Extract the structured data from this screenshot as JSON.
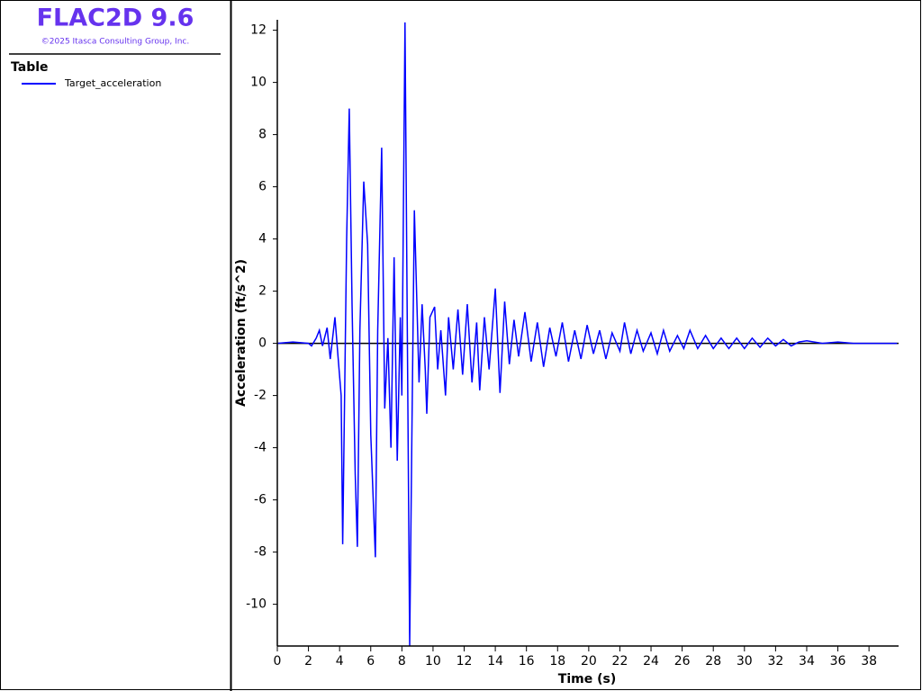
{
  "sidebar": {
    "app_title": "FLAC2D 9.6",
    "copyright": "©2025 Itasca Consulting Group, Inc.",
    "section": "Table"
  },
  "chart_data": {
    "type": "line",
    "xlabel": "Time (s)",
    "ylabel": "Acceleration (ft/s^2)",
    "x": [
      0,
      1,
      2,
      2.2,
      2.5,
      2.7,
      2.9,
      3.2,
      3.4,
      3.7,
      3.9,
      4.1,
      4.2,
      4.45,
      4.62,
      4.8,
      5.0,
      5.14,
      5.3,
      5.55,
      5.8,
      6.0,
      6.3,
      6.45,
      6.7,
      6.9,
      7.1,
      7.3,
      7.5,
      7.7,
      7.9,
      8.0,
      8.2,
      8.5,
      8.65,
      8.8,
      9.1,
      9.3,
      9.5,
      9.6,
      9.8,
      10.1,
      10.3,
      10.5,
      10.8,
      11.0,
      11.3,
      11.6,
      11.9,
      12.2,
      12.5,
      12.8,
      13.0,
      13.3,
      13.6,
      14.0,
      14.3,
      14.6,
      14.9,
      15.2,
      15.5,
      15.9,
      16.3,
      16.7,
      17.1,
      17.5,
      17.9,
      18.3,
      18.7,
      19.1,
      19.5,
      19.9,
      20.3,
      20.7,
      21.1,
      21.5,
      22.0,
      22.3,
      22.7,
      23.1,
      23.5,
      24.0,
      24.4,
      24.8,
      25.2,
      25.7,
      26.1,
      26.5,
      27.0,
      27.5,
      28.0,
      28.5,
      29.0,
      29.5,
      30.0,
      30.5,
      31.0,
      31.5,
      32.0,
      32.5,
      33.0,
      33.5,
      34.0,
      35.0,
      36.0,
      37.0,
      38.0,
      39.8
    ],
    "series": [
      {
        "name": "Target_acceleration",
        "color": "#0000ff",
        "values": [
          0,
          0.05,
          0,
          -0.1,
          0.2,
          0.5,
          -0.1,
          0.6,
          -0.6,
          1.0,
          -0.5,
          -2,
          -7.7,
          4,
          9.0,
          1.5,
          -5,
          -7.8,
          0.5,
          6.2,
          3.8,
          -3.5,
          -8.2,
          0.5,
          7.5,
          -2.5,
          0.2,
          -4,
          3.3,
          -4.5,
          1.0,
          -2,
          12.3,
          -11.6,
          -3,
          5.1,
          -1.5,
          1.5,
          -1,
          -2.7,
          1,
          1.4,
          -1,
          0.5,
          -2,
          1,
          -1,
          1.3,
          -1.2,
          1.5,
          -1.5,
          0.8,
          -1.8,
          1.0,
          -1,
          2.1,
          -1.9,
          1.6,
          -0.8,
          0.9,
          -0.5,
          1.2,
          -0.7,
          0.8,
          -0.9,
          0.6,
          -0.5,
          0.8,
          -0.7,
          0.5,
          -0.6,
          0.7,
          -0.4,
          0.5,
          -0.6,
          0.4,
          -0.3,
          0.8,
          -0.4,
          0.5,
          -0.3,
          0.4,
          -0.4,
          0.5,
          -0.3,
          0.3,
          -0.2,
          0.5,
          -0.2,
          0.3,
          -0.2,
          0.2,
          -0.2,
          0.2,
          -0.2,
          0.2,
          -0.15,
          0.2,
          -0.1,
          0.15,
          -0.1,
          0.05,
          0.1,
          0,
          0.05,
          0,
          0,
          0
        ]
      }
    ],
    "xlim": [
      0,
      39.9
    ],
    "ylim": [
      -11.6,
      12.4
    ],
    "xticks": [
      0,
      2,
      4,
      6,
      8,
      10,
      12,
      14,
      16,
      18,
      20,
      22,
      24,
      26,
      28,
      30,
      32,
      34,
      36,
      38
    ],
    "yticks": [
      -10,
      -8,
      -6,
      -4,
      -2,
      0,
      2,
      4,
      6,
      8,
      10,
      12
    ]
  }
}
